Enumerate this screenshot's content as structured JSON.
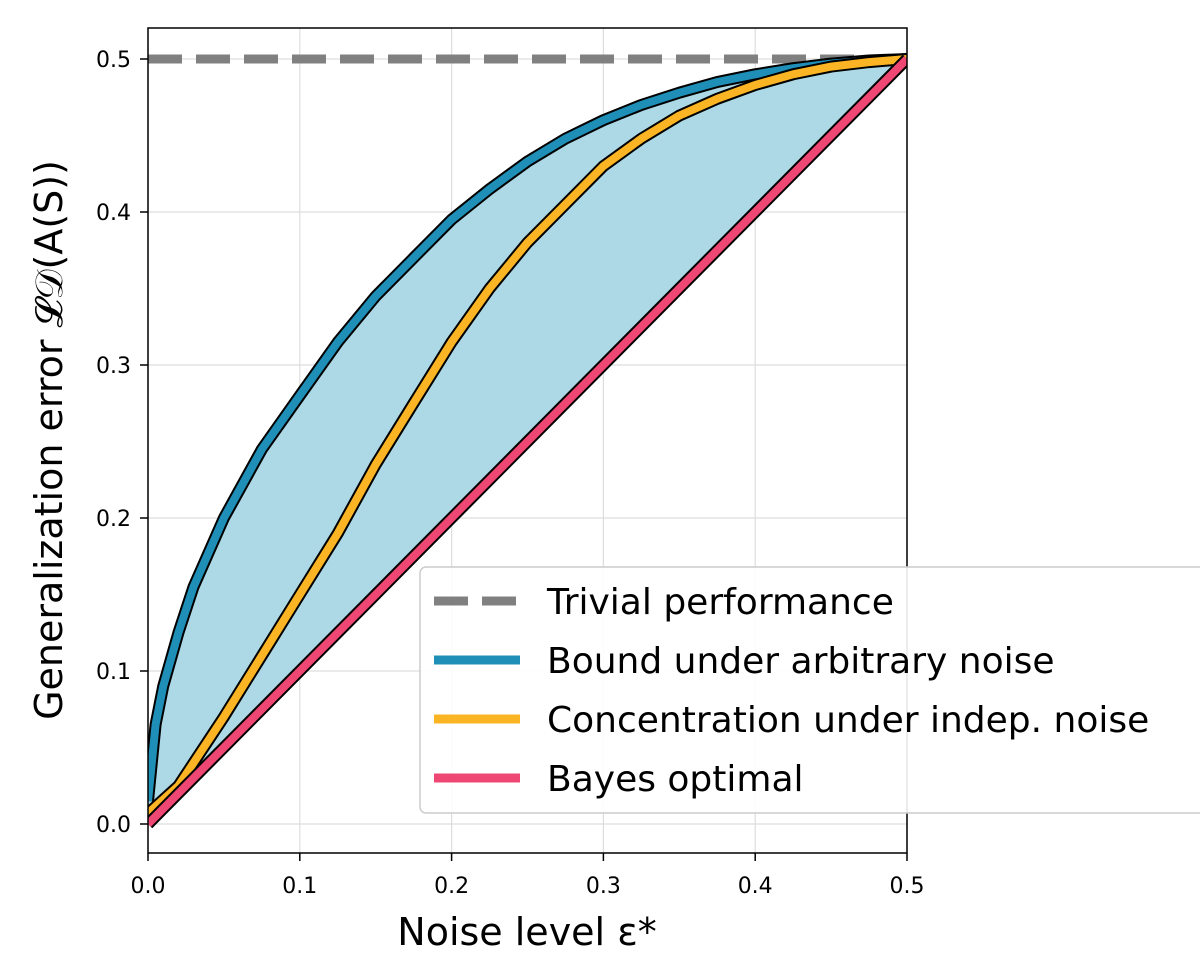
{
  "chart_data": {
    "type": "line",
    "title": "",
    "xlabel": "Noise level ε*",
    "ylabel": "Generalization error 𝓛𝒟(A(S))",
    "xlim": [
      0.0,
      0.5
    ],
    "ylim": [
      0.0,
      0.5
    ],
    "x_ticks": [
      "0.0",
      "0.1",
      "0.2",
      "0.3",
      "0.4",
      "0.5"
    ],
    "y_ticks": [
      "0.0",
      "0.1",
      "0.2",
      "0.3",
      "0.4",
      "0.5"
    ],
    "grid": true,
    "legend_position": "lower-right",
    "shaded_region": {
      "between": [
        "Bound under arbitrary noise",
        "Bayes optimal"
      ],
      "color": "#add8e6"
    },
    "series": [
      {
        "name": "Trivial performance",
        "style": "dashed",
        "color": "#808080",
        "x": [
          0.0,
          0.5
        ],
        "y": [
          0.5,
          0.5
        ]
      },
      {
        "name": "Bound under arbitrary noise",
        "style": "solid",
        "color": "#1f8fb8",
        "x": [
          0.0,
          0.005,
          0.01,
          0.02,
          0.03,
          0.05,
          0.075,
          0.1,
          0.125,
          0.15,
          0.175,
          0.2,
          0.225,
          0.25,
          0.275,
          0.3,
          0.325,
          0.35,
          0.375,
          0.4,
          0.425,
          0.45,
          0.475,
          0.5
        ],
        "y": [
          0.015,
          0.065,
          0.09,
          0.125,
          0.155,
          0.2,
          0.245,
          0.28,
          0.315,
          0.345,
          0.37,
          0.395,
          0.415,
          0.433,
          0.448,
          0.46,
          0.47,
          0.478,
          0.485,
          0.49,
          0.494,
          0.497,
          0.499,
          0.5
        ]
      },
      {
        "name": "Concentration under indep. noise",
        "style": "solid",
        "color": "#fbb424",
        "x": [
          0.0,
          0.02,
          0.05,
          0.075,
          0.1,
          0.125,
          0.15,
          0.175,
          0.2,
          0.225,
          0.25,
          0.275,
          0.3,
          0.325,
          0.35,
          0.375,
          0.4,
          0.425,
          0.45,
          0.475,
          0.5
        ],
        "y": [
          0.007,
          0.025,
          0.07,
          0.11,
          0.15,
          0.19,
          0.235,
          0.275,
          0.315,
          0.35,
          0.38,
          0.405,
          0.43,
          0.448,
          0.463,
          0.474,
          0.483,
          0.49,
          0.495,
          0.498,
          0.5
        ]
      },
      {
        "name": "Bayes optimal",
        "style": "solid",
        "color": "#ef4773",
        "x": [
          0.0,
          0.5
        ],
        "y": [
          0.0,
          0.5
        ]
      }
    ]
  }
}
